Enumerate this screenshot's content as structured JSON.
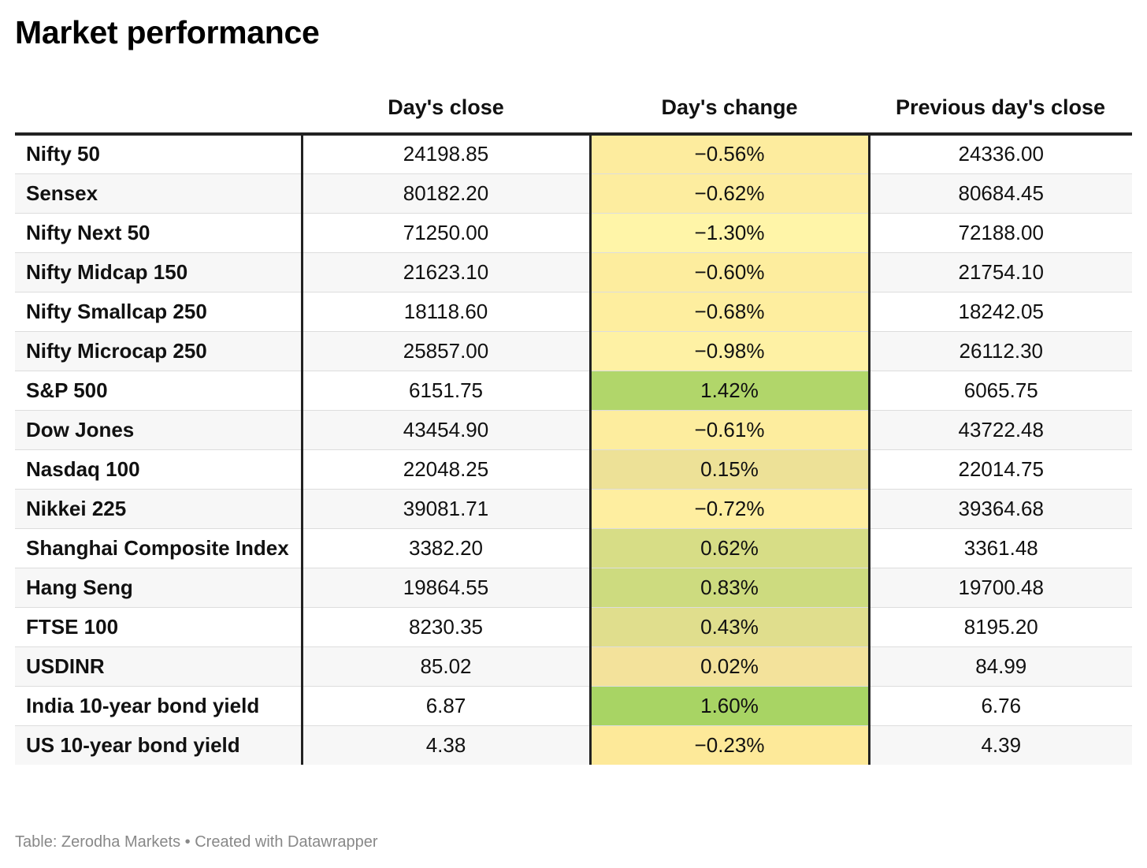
{
  "title": "Market performance",
  "footer": "Table: Zerodha Markets • Created with Datawrapper",
  "chart_data": {
    "type": "table",
    "columns": [
      "",
      "Day's close",
      "Day's change",
      "Previous day's close"
    ],
    "rows": [
      {
        "name": "Nifty 50",
        "close": "24198.85",
        "change": "−0.56%",
        "change_value": -0.56,
        "prev": "24336.00"
      },
      {
        "name": "Sensex",
        "close": "80182.20",
        "change": "−0.62%",
        "change_value": -0.62,
        "prev": "80684.45"
      },
      {
        "name": "Nifty Next 50",
        "close": "71250.00",
        "change": "−1.30%",
        "change_value": -1.3,
        "prev": "72188.00"
      },
      {
        "name": "Nifty Midcap 150",
        "close": "21623.10",
        "change": "−0.60%",
        "change_value": -0.6,
        "prev": "21754.10"
      },
      {
        "name": "Nifty Smallcap 250",
        "close": "18118.60",
        "change": "−0.68%",
        "change_value": -0.68,
        "prev": "18242.05"
      },
      {
        "name": "Nifty Microcap 250",
        "close": "25857.00",
        "change": "−0.98%",
        "change_value": -0.98,
        "prev": "26112.30"
      },
      {
        "name": "S&P 500",
        "close": "6151.75",
        "change": "1.42%",
        "change_value": 1.42,
        "prev": "6065.75"
      },
      {
        "name": "Dow Jones",
        "close": "43454.90",
        "change": "−0.61%",
        "change_value": -0.61,
        "prev": "43722.48"
      },
      {
        "name": "Nasdaq 100",
        "close": "22048.25",
        "change": "0.15%",
        "change_value": 0.15,
        "prev": "22014.75"
      },
      {
        "name": "Nikkei 225",
        "close": "39081.71",
        "change": "−0.72%",
        "change_value": -0.72,
        "prev": "39364.68"
      },
      {
        "name": "Shanghai Composite Index",
        "close": "3382.20",
        "change": "0.62%",
        "change_value": 0.62,
        "prev": "3361.48"
      },
      {
        "name": "Hang Seng",
        "close": "19864.55",
        "change": "0.83%",
        "change_value": 0.83,
        "prev": "19700.48"
      },
      {
        "name": "FTSE 100",
        "close": "8230.35",
        "change": "0.43%",
        "change_value": 0.43,
        "prev": "8195.20"
      },
      {
        "name": "USDINR",
        "close": "85.02",
        "change": "0.02%",
        "change_value": 0.02,
        "prev": "84.99"
      },
      {
        "name": "India 10-year bond yield",
        "close": "6.87",
        "change": "1.60%",
        "change_value": 1.6,
        "prev": "6.76"
      },
      {
        "name": "US 10-year bond yield",
        "close": "4.38",
        "change": "−0.23%",
        "change_value": -0.23,
        "prev": "4.39"
      }
    ]
  }
}
